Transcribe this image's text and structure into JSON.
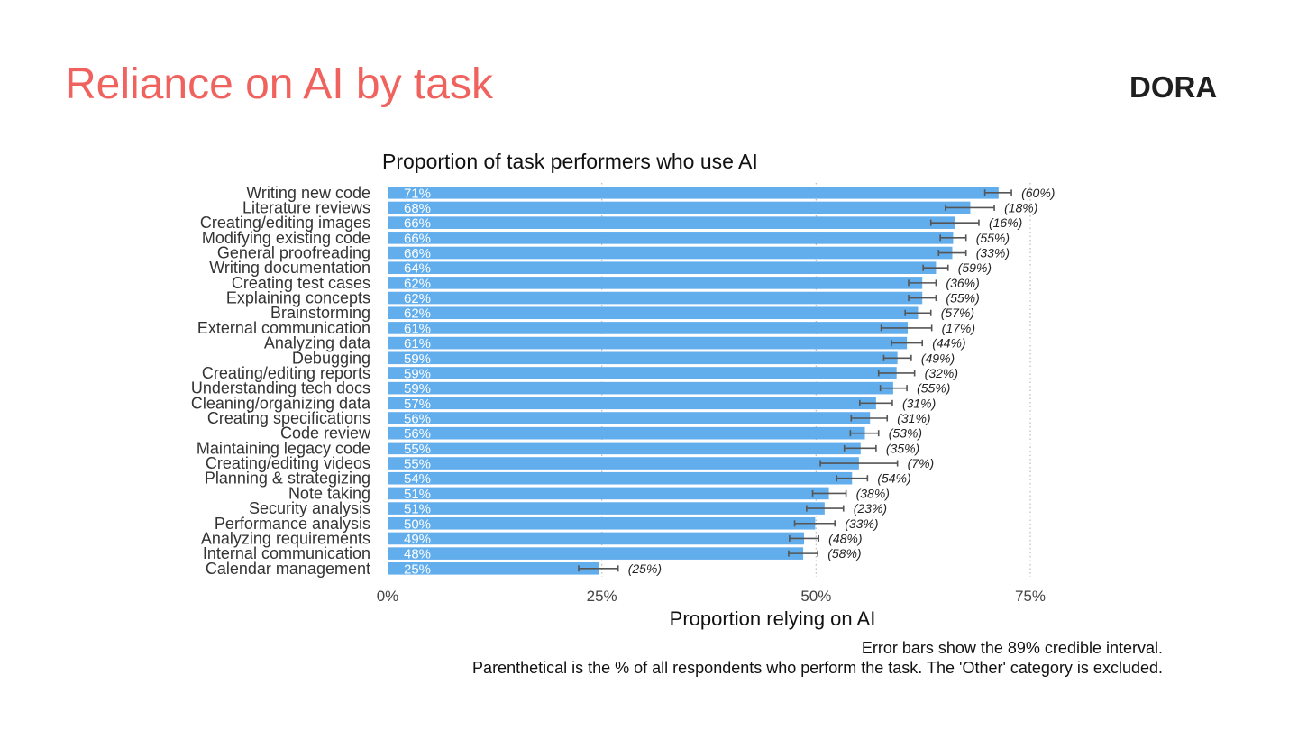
{
  "slide": {
    "title": "Reliance on AI by task",
    "logo": "DORA"
  },
  "footnotes": [
    "Error bars show the 89% credible interval.",
    "Parenthetical is the % of all respondents who perform the task. The 'Other' category is excluded."
  ],
  "colors": {
    "title": "#f0625d",
    "bar": "#62adec",
    "error_bar": "#555555",
    "grid": "#bbbbbb"
  },
  "chart_data": {
    "type": "bar",
    "orientation": "horizontal",
    "title": "Proportion of task performers who use AI",
    "xlabel": "Proportion relying on AI",
    "ylabel": "",
    "xlim": [
      0,
      75
    ],
    "xticks": [
      0,
      25,
      50,
      75
    ],
    "xtick_labels": [
      "0%",
      "25%",
      "50%",
      "75%"
    ],
    "grid": "vertical dotted",
    "categories": [
      "Writing new code",
      "Literature reviews",
      "Creating/editing images",
      "Modifying existing code",
      "General proofreading",
      "Writing documentation",
      "Creating test cases",
      "Explaining concepts",
      "Brainstorming",
      "External communication",
      "Analyzing data",
      "Debugging",
      "Creating/editing reports",
      "Understanding tech docs",
      "Cleaning/organizing data",
      "Creating specifications",
      "Code review",
      "Maintaining legacy code",
      "Creating/editing videos",
      "Planning & strategizing",
      "Note taking",
      "Security analysis",
      "Performance analysis",
      "Analyzing requirements",
      "Internal communication",
      "Calendar management"
    ],
    "values": [
      71.3,
      68.0,
      66.2,
      66.0,
      65.9,
      64.0,
      62.4,
      62.4,
      61.9,
      60.7,
      60.6,
      59.5,
      59.4,
      59.0,
      57.0,
      56.3,
      55.7,
      55.2,
      55.0,
      54.2,
      51.5,
      51.0,
      49.9,
      48.6,
      48.5,
      24.7
    ],
    "value_labels": [
      "71%",
      "68%",
      "66%",
      "66%",
      "66%",
      "64%",
      "62%",
      "62%",
      "62%",
      "61%",
      "61%",
      "59%",
      "59%",
      "59%",
      "57%",
      "56%",
      "56%",
      "55%",
      "55%",
      "54%",
      "51%",
      "51%",
      "50%",
      "49%",
      "48%",
      "25%"
    ],
    "ci_low": [
      69.7,
      65.1,
      63.4,
      64.5,
      64.3,
      62.5,
      60.8,
      60.8,
      60.4,
      57.6,
      58.8,
      57.9,
      57.3,
      57.5,
      55.1,
      54.1,
      54.0,
      53.3,
      50.5,
      52.4,
      49.6,
      48.9,
      47.5,
      46.9,
      46.8,
      22.3
    ],
    "ci_high": [
      72.8,
      70.8,
      69.0,
      67.5,
      67.5,
      65.4,
      64.0,
      64.0,
      63.4,
      63.5,
      62.4,
      61.1,
      61.5,
      60.6,
      58.9,
      58.3,
      57.3,
      57.0,
      59.5,
      56.0,
      53.5,
      53.2,
      52.2,
      50.3,
      50.2,
      26.9
    ],
    "respondent_share": [
      "(60%)",
      "(18%)",
      "(16%)",
      "(55%)",
      "(33%)",
      "(59%)",
      "(36%)",
      "(55%)",
      "(57%)",
      "(17%)",
      "(44%)",
      "(49%)",
      "(32%)",
      "(55%)",
      "(31%)",
      "(31%)",
      "(53%)",
      "(35%)",
      "(7%)",
      "(54%)",
      "(38%)",
      "(23%)",
      "(33%)",
      "(48%)",
      "(58%)",
      "(25%)"
    ]
  }
}
